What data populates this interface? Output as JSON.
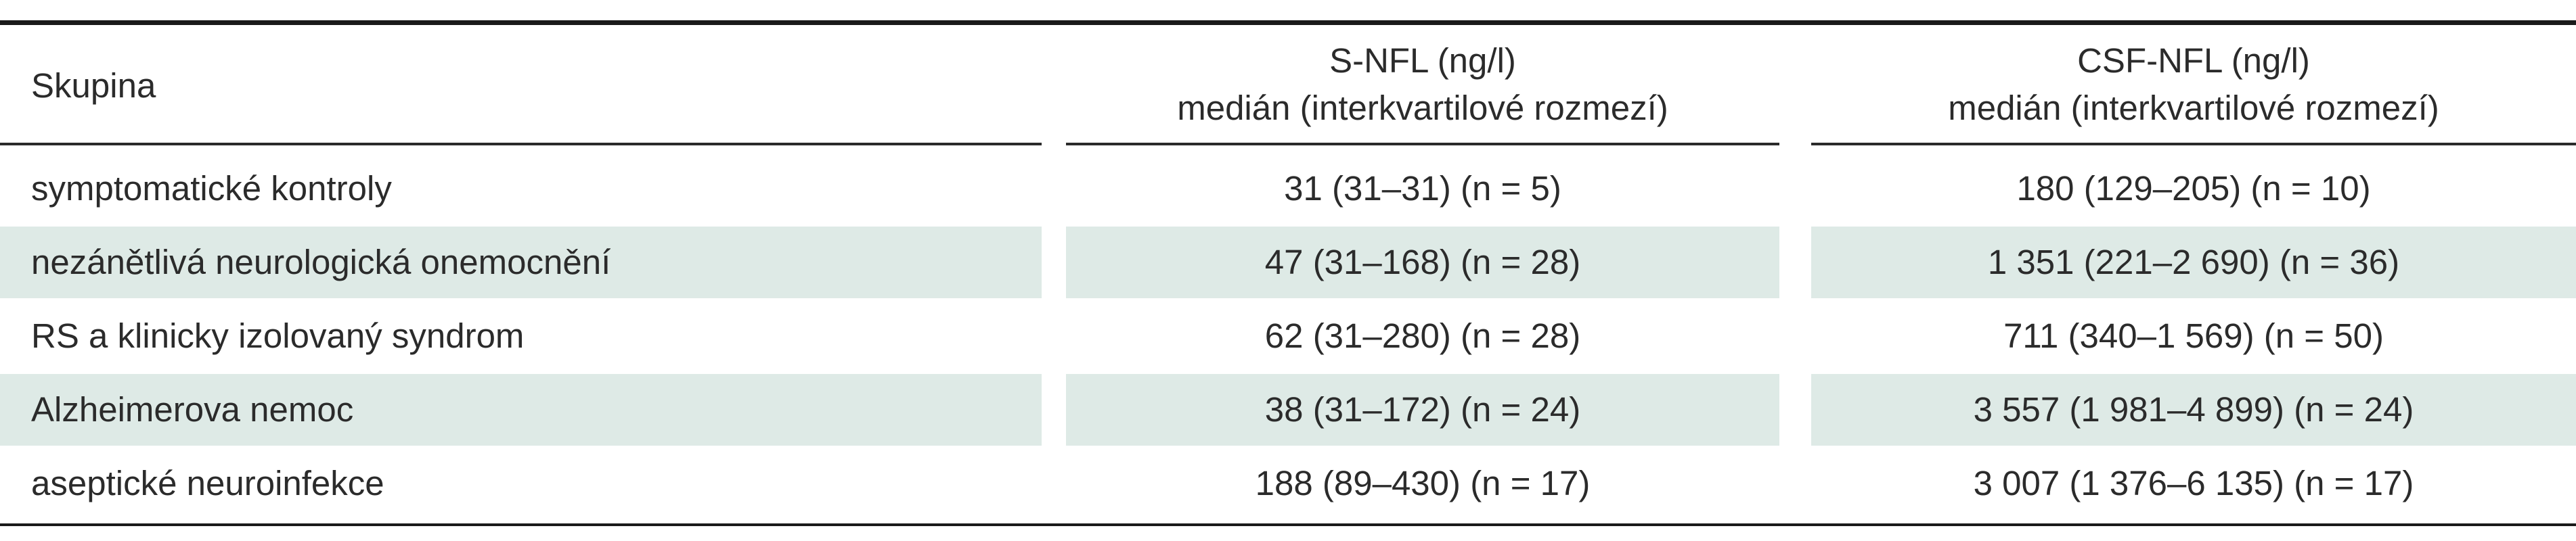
{
  "table": {
    "headers": {
      "group": "Skupina",
      "s_nfl_line1": "S-NFL (ng/l)",
      "s_nfl_line2": "medián (interkvartilové rozmezí)",
      "csf_nfl_line1": "CSF-NFL (ng/l)",
      "csf_nfl_line2": "medián (interkvartilové rozmezí)"
    },
    "rows": [
      {
        "group": "symptomatické kontroly",
        "s_nfl": "31 (31–31) (n = 5)",
        "csf_nfl": "180 (129–205) (n = 10)"
      },
      {
        "group": "nezánětlivá neurologická onemocnění",
        "s_nfl": "47 (31–168) (n = 28)",
        "csf_nfl": "1 351 (221–2 690) (n = 36)"
      },
      {
        "group": "RS a klinicky izolovaný syndrom",
        "s_nfl": "62 (31–280) (n = 28)",
        "csf_nfl": "711 (340–1 569) (n = 50)"
      },
      {
        "group": "Alzheimerova nemoc",
        "s_nfl": "38 (31–172) (n = 24)",
        "csf_nfl": "3 557 (1 981–4 899) (n = 24)"
      },
      {
        "group": "aseptické neuroinfekce",
        "s_nfl": "188 (89–430) (n = 17)",
        "csf_nfl": "3 007 (1 376–6 135) (n = 17)"
      }
    ],
    "colors": {
      "shade": "#deeae6",
      "text": "#2b2b2b",
      "rule": "#1a1a1a"
    }
  }
}
